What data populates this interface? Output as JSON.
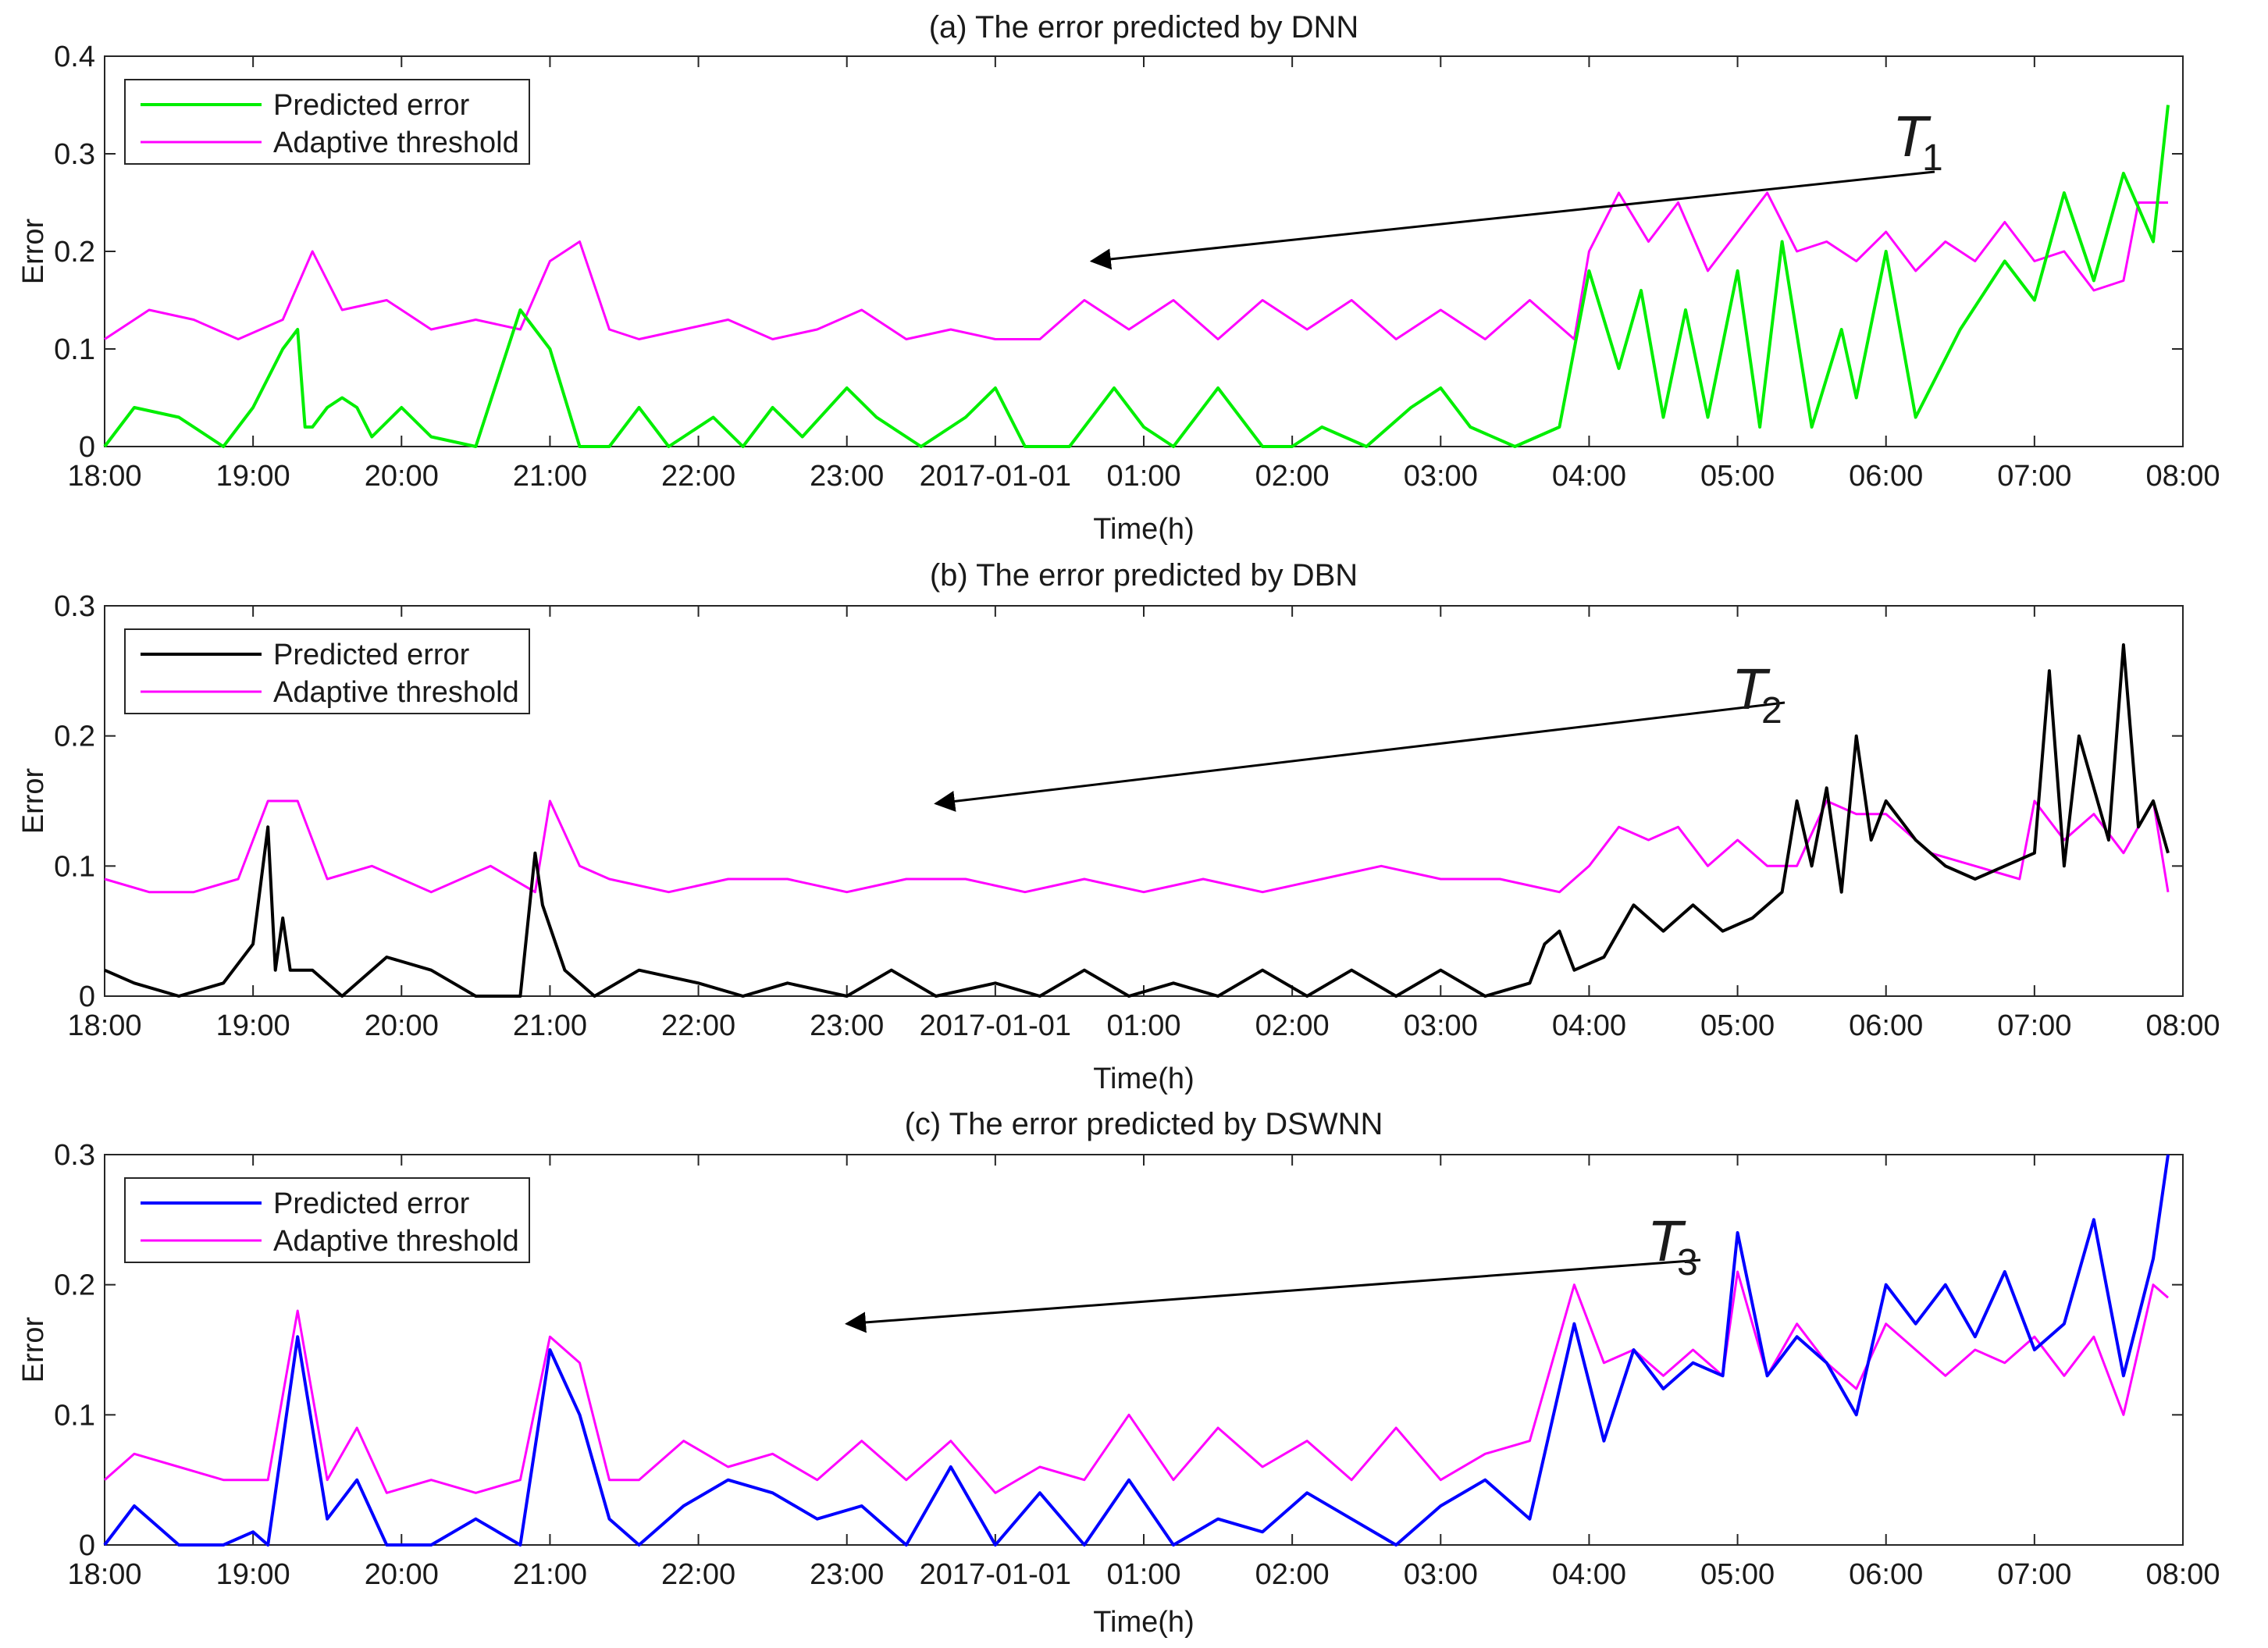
{
  "figure": {
    "panels": [
      {
        "title": "(a) The error predicted by DNN",
        "ylabel": "Error",
        "xlabel": "Time(h)",
        "ylim": [
          0,
          0.4
        ],
        "yticks": [
          0,
          0.1,
          0.2,
          0.3,
          0.4
        ],
        "ytick_labels": [
          "0",
          "0.1",
          "0.2",
          "0.3",
          "0.4"
        ],
        "legend": [
          "Predicted error",
          "Adaptive threshold"
        ],
        "annotation": {
          "letter": "T",
          "sub": "1",
          "hour": 6.65,
          "value": 0.19
        },
        "colors": {
          "predicted": "#00ee00",
          "threshold": "#ff00ff"
        }
      },
      {
        "title": "(b) The error predicted by DBN",
        "ylabel": "Error",
        "xlabel": "Time(h)",
        "ylim": [
          0,
          0.3
        ],
        "yticks": [
          0,
          0.1,
          0.2,
          0.3
        ],
        "ytick_labels": [
          "0",
          "0.1",
          "0.2",
          "0.3"
        ],
        "legend": [
          "Predicted error",
          "Adaptive threshold"
        ],
        "annotation": {
          "letter": "T",
          "sub": "2",
          "hour": 5.6,
          "value": 0.148
        },
        "colors": {
          "predicted": "#000000",
          "threshold": "#ff00ff"
        }
      },
      {
        "title": "(c) The error predicted by DSWNN",
        "ylabel": "Error",
        "xlabel": "Time(h)",
        "ylim": [
          0,
          0.3
        ],
        "yticks": [
          0,
          0.1,
          0.2,
          0.3
        ],
        "ytick_labels": [
          "0",
          "0.1",
          "0.2",
          "0.3"
        ],
        "legend": [
          "Predicted error",
          "Adaptive threshold"
        ],
        "annotation": {
          "letter": "T",
          "sub": "3",
          "hour": 5.0,
          "value": 0.17
        },
        "colors": {
          "predicted": "#0000ff",
          "threshold": "#ff00ff"
        }
      }
    ],
    "x_tick_labels": [
      "18:00",
      "19:00",
      "20:00",
      "21:00",
      "22:00",
      "23:00",
      "2017-01-01",
      "01:00",
      "02:00",
      "03:00",
      "04:00",
      "05:00",
      "06:00",
      "07:00",
      "08:00"
    ]
  },
  "chart_data": [
    {
      "type": "line",
      "title": "(a) The error predicted by DNN",
      "xlabel": "Time(h)",
      "ylabel": "Error",
      "x_unit": "hours after 18:00",
      "xlim": [
        0,
        14
      ],
      "ylim": [
        0,
        0.4
      ],
      "series": [
        {
          "name": "Predicted error",
          "x": [
            0,
            0.2,
            0.5,
            0.8,
            1.0,
            1.2,
            1.3,
            1.35,
            1.4,
            1.5,
            1.6,
            1.7,
            1.8,
            2.0,
            2.2,
            2.5,
            2.8,
            3.0,
            3.2,
            3.4,
            3.5,
            3.6,
            3.8,
            3.9,
            4.1,
            4.3,
            4.5,
            4.7,
            5.0,
            5.2,
            5.5,
            5.8,
            6.0,
            6.2,
            6.5,
            6.8,
            7.0,
            7.2,
            7.5,
            7.8,
            8.0,
            8.2,
            8.5,
            8.8,
            9.0,
            9.2,
            9.5,
            9.8,
            10.0,
            10.2,
            10.35,
            10.5,
            10.65,
            10.8,
            11.0,
            11.15,
            11.3,
            11.5,
            11.7,
            11.8,
            12.0,
            12.2,
            12.5,
            12.8,
            13.0,
            13.2,
            13.4,
            13.6,
            13.8,
            13.9
          ],
          "values": [
            0.0,
            0.04,
            0.03,
            0.0,
            0.04,
            0.1,
            0.12,
            0.02,
            0.02,
            0.04,
            0.05,
            0.04,
            0.01,
            0.04,
            0.01,
            0.0,
            0.14,
            0.1,
            0.0,
            0.0,
            0.02,
            0.04,
            0.0,
            0.01,
            0.03,
            0.0,
            0.04,
            0.01,
            0.06,
            0.03,
            0.0,
            0.03,
            0.06,
            0.0,
            0.0,
            0.06,
            0.02,
            0.0,
            0.06,
            0.0,
            0.0,
            0.02,
            0.0,
            0.04,
            0.06,
            0.02,
            0.0,
            0.02,
            0.18,
            0.08,
            0.16,
            0.03,
            0.14,
            0.03,
            0.18,
            0.02,
            0.21,
            0.02,
            0.12,
            0.05,
            0.2,
            0.03,
            0.12,
            0.19,
            0.15,
            0.26,
            0.17,
            0.28,
            0.21,
            0.35
          ]
        },
        {
          "name": "Adaptive threshold",
          "x": [
            0,
            0.3,
            0.6,
            0.9,
            1.2,
            1.4,
            1.6,
            1.9,
            2.2,
            2.5,
            2.8,
            3.0,
            3.2,
            3.4,
            3.6,
            3.9,
            4.2,
            4.5,
            4.8,
            5.1,
            5.4,
            5.7,
            6.0,
            6.3,
            6.6,
            6.9,
            7.2,
            7.5,
            7.8,
            8.1,
            8.4,
            8.7,
            9.0,
            9.3,
            9.6,
            9.9,
            10.0,
            10.2,
            10.4,
            10.6,
            10.8,
            11.0,
            11.2,
            11.4,
            11.6,
            11.8,
            12.0,
            12.2,
            12.4,
            12.6,
            12.8,
            13.0,
            13.2,
            13.4,
            13.6,
            13.7,
            13.9
          ],
          "values": [
            0.11,
            0.14,
            0.13,
            0.11,
            0.13,
            0.2,
            0.14,
            0.15,
            0.12,
            0.13,
            0.12,
            0.19,
            0.21,
            0.12,
            0.11,
            0.12,
            0.13,
            0.11,
            0.12,
            0.14,
            0.11,
            0.12,
            0.11,
            0.11,
            0.15,
            0.12,
            0.15,
            0.11,
            0.15,
            0.12,
            0.15,
            0.11,
            0.14,
            0.11,
            0.15,
            0.11,
            0.2,
            0.26,
            0.21,
            0.25,
            0.18,
            0.22,
            0.26,
            0.2,
            0.21,
            0.19,
            0.22,
            0.18,
            0.21,
            0.19,
            0.23,
            0.19,
            0.2,
            0.16,
            0.17,
            0.25,
            0.25
          ]
        }
      ]
    },
    {
      "type": "line",
      "title": "(b) The error predicted by DBN",
      "xlabel": "Time(h)",
      "ylabel": "Error",
      "x_unit": "hours after 18:00",
      "xlim": [
        0,
        14
      ],
      "ylim": [
        0,
        0.3
      ],
      "series": [
        {
          "name": "Predicted error",
          "x": [
            0,
            0.2,
            0.5,
            0.8,
            1.0,
            1.1,
            1.15,
            1.2,
            1.25,
            1.3,
            1.4,
            1.6,
            1.9,
            2.2,
            2.5,
            2.8,
            2.9,
            2.95,
            3.1,
            3.3,
            3.6,
            4.0,
            4.3,
            4.6,
            5.0,
            5.3,
            5.6,
            6.0,
            6.3,
            6.6,
            6.9,
            7.2,
            7.5,
            7.8,
            8.1,
            8.4,
            8.7,
            9.0,
            9.3,
            9.6,
            9.7,
            9.8,
            9.9,
            10.1,
            10.3,
            10.5,
            10.7,
            10.9,
            11.1,
            11.3,
            11.4,
            11.5,
            11.6,
            11.7,
            11.8,
            11.9,
            12.0,
            12.2,
            12.4,
            12.6,
            12.8,
            13.0,
            13.1,
            13.2,
            13.3,
            13.5,
            13.6,
            13.7,
            13.8,
            13.9
          ],
          "values": [
            0.02,
            0.01,
            0.0,
            0.01,
            0.04,
            0.13,
            0.02,
            0.06,
            0.02,
            0.02,
            0.02,
            0.0,
            0.03,
            0.02,
            0.0,
            0.0,
            0.11,
            0.07,
            0.02,
            0.0,
            0.02,
            0.01,
            0.0,
            0.01,
            0.0,
            0.02,
            0.0,
            0.01,
            0.0,
            0.02,
            0.0,
            0.01,
            0.0,
            0.02,
            0.0,
            0.02,
            0.0,
            0.02,
            0.0,
            0.01,
            0.04,
            0.05,
            0.02,
            0.03,
            0.07,
            0.05,
            0.07,
            0.05,
            0.06,
            0.08,
            0.15,
            0.1,
            0.16,
            0.08,
            0.2,
            0.12,
            0.15,
            0.12,
            0.1,
            0.09,
            0.1,
            0.11,
            0.25,
            0.1,
            0.2,
            0.12,
            0.27,
            0.13,
            0.15,
            0.11
          ]
        },
        {
          "name": "Adaptive threshold",
          "x": [
            0,
            0.3,
            0.6,
            0.9,
            1.1,
            1.3,
            1.5,
            1.8,
            2.2,
            2.6,
            2.9,
            3.0,
            3.2,
            3.4,
            3.8,
            4.2,
            4.6,
            5.0,
            5.4,
            5.8,
            6.2,
            6.6,
            7.0,
            7.4,
            7.8,
            8.2,
            8.6,
            9.0,
            9.4,
            9.8,
            10.0,
            10.2,
            10.4,
            10.6,
            10.8,
            11.0,
            11.2,
            11.4,
            11.6,
            11.8,
            12.0,
            12.3,
            12.6,
            12.9,
            13.0,
            13.2,
            13.4,
            13.6,
            13.8,
            13.9
          ],
          "values": [
            0.09,
            0.08,
            0.08,
            0.09,
            0.15,
            0.15,
            0.09,
            0.1,
            0.08,
            0.1,
            0.08,
            0.15,
            0.1,
            0.09,
            0.08,
            0.09,
            0.09,
            0.08,
            0.09,
            0.09,
            0.08,
            0.09,
            0.08,
            0.09,
            0.08,
            0.09,
            0.1,
            0.09,
            0.09,
            0.08,
            0.1,
            0.13,
            0.12,
            0.13,
            0.1,
            0.12,
            0.1,
            0.1,
            0.15,
            0.14,
            0.14,
            0.11,
            0.1,
            0.09,
            0.15,
            0.12,
            0.14,
            0.11,
            0.15,
            0.08
          ]
        }
      ]
    },
    {
      "type": "line",
      "title": "(c) The error predicted by DSWNN",
      "xlabel": "Time(h)",
      "ylabel": "Error",
      "x_unit": "hours after 18:00",
      "xlim": [
        0,
        14
      ],
      "ylim": [
        0,
        0.3
      ],
      "series": [
        {
          "name": "Predicted error",
          "x": [
            0,
            0.2,
            0.5,
            0.8,
            1.0,
            1.1,
            1.3,
            1.5,
            1.7,
            1.9,
            2.2,
            2.5,
            2.8,
            3.0,
            3.2,
            3.4,
            3.6,
            3.9,
            4.2,
            4.5,
            4.8,
            5.1,
            5.4,
            5.7,
            6.0,
            6.3,
            6.6,
            6.9,
            7.2,
            7.5,
            7.8,
            8.1,
            8.4,
            8.7,
            9.0,
            9.3,
            9.6,
            9.9,
            10.1,
            10.3,
            10.5,
            10.7,
            10.9,
            11.0,
            11.2,
            11.4,
            11.6,
            11.8,
            12.0,
            12.2,
            12.4,
            12.6,
            12.8,
            13.0,
            13.2,
            13.4,
            13.6,
            13.8,
            13.9
          ],
          "values": [
            0.0,
            0.03,
            0.0,
            0.0,
            0.01,
            0.0,
            0.16,
            0.02,
            0.05,
            0.0,
            0.0,
            0.02,
            0.0,
            0.15,
            0.1,
            0.02,
            0.0,
            0.03,
            0.05,
            0.04,
            0.02,
            0.03,
            0.0,
            0.06,
            0.0,
            0.04,
            0.0,
            0.05,
            0.0,
            0.02,
            0.01,
            0.04,
            0.02,
            0.0,
            0.03,
            0.05,
            0.02,
            0.17,
            0.08,
            0.15,
            0.12,
            0.14,
            0.13,
            0.24,
            0.13,
            0.16,
            0.14,
            0.1,
            0.2,
            0.17,
            0.2,
            0.16,
            0.21,
            0.15,
            0.17,
            0.25,
            0.13,
            0.22,
            0.3
          ]
        },
        {
          "name": "Adaptive threshold",
          "x": [
            0,
            0.2,
            0.5,
            0.8,
            1.0,
            1.1,
            1.3,
            1.5,
            1.7,
            1.9,
            2.2,
            2.5,
            2.8,
            3.0,
            3.2,
            3.4,
            3.6,
            3.9,
            4.2,
            4.5,
            4.8,
            5.1,
            5.4,
            5.7,
            6.0,
            6.3,
            6.6,
            6.9,
            7.2,
            7.5,
            7.8,
            8.1,
            8.4,
            8.7,
            9.0,
            9.3,
            9.6,
            9.9,
            10.1,
            10.3,
            10.5,
            10.7,
            10.9,
            11.0,
            11.2,
            11.4,
            11.6,
            11.8,
            12.0,
            12.2,
            12.4,
            12.6,
            12.8,
            13.0,
            13.2,
            13.4,
            13.6,
            13.8,
            13.9
          ],
          "values": [
            0.05,
            0.07,
            0.06,
            0.05,
            0.05,
            0.05,
            0.18,
            0.05,
            0.09,
            0.04,
            0.05,
            0.04,
            0.05,
            0.16,
            0.14,
            0.05,
            0.05,
            0.08,
            0.06,
            0.07,
            0.05,
            0.08,
            0.05,
            0.08,
            0.04,
            0.06,
            0.05,
            0.1,
            0.05,
            0.09,
            0.06,
            0.08,
            0.05,
            0.09,
            0.05,
            0.07,
            0.08,
            0.2,
            0.14,
            0.15,
            0.13,
            0.15,
            0.13,
            0.21,
            0.13,
            0.17,
            0.14,
            0.12,
            0.17,
            0.15,
            0.13,
            0.15,
            0.14,
            0.16,
            0.13,
            0.16,
            0.1,
            0.2,
            0.19
          ]
        }
      ]
    }
  ]
}
